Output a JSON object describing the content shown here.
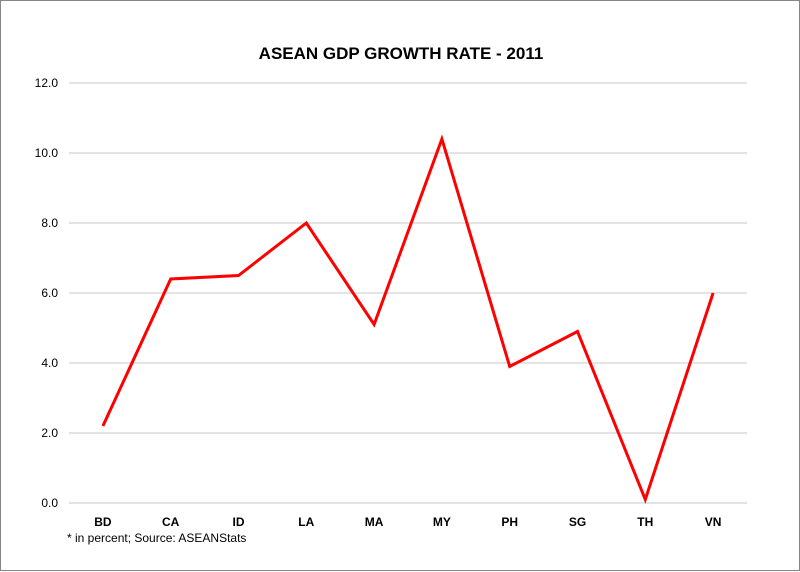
{
  "chart_data": {
    "type": "line",
    "title": "ASEAN GDP GROWTH RATE - 2011",
    "categories": [
      "BD",
      "CA",
      "ID",
      "LA",
      "MA",
      "MY",
      "PH",
      "SG",
      "TH",
      "VN"
    ],
    "series": [
      {
        "values": [
          2.2,
          6.4,
          6.5,
          8.0,
          5.1,
          10.4,
          3.9,
          4.9,
          0.1,
          6.0
        ],
        "color": "#ff0000"
      }
    ],
    "yticks": [
      "0.0",
      "2.0",
      "4.0",
      "6.0",
      "8.0",
      "10.0",
      "12.0"
    ],
    "ylim": [
      0,
      12
    ],
    "grid": true,
    "legend": "none",
    "footnote": "* in percent; Source: ASEANStats"
  }
}
